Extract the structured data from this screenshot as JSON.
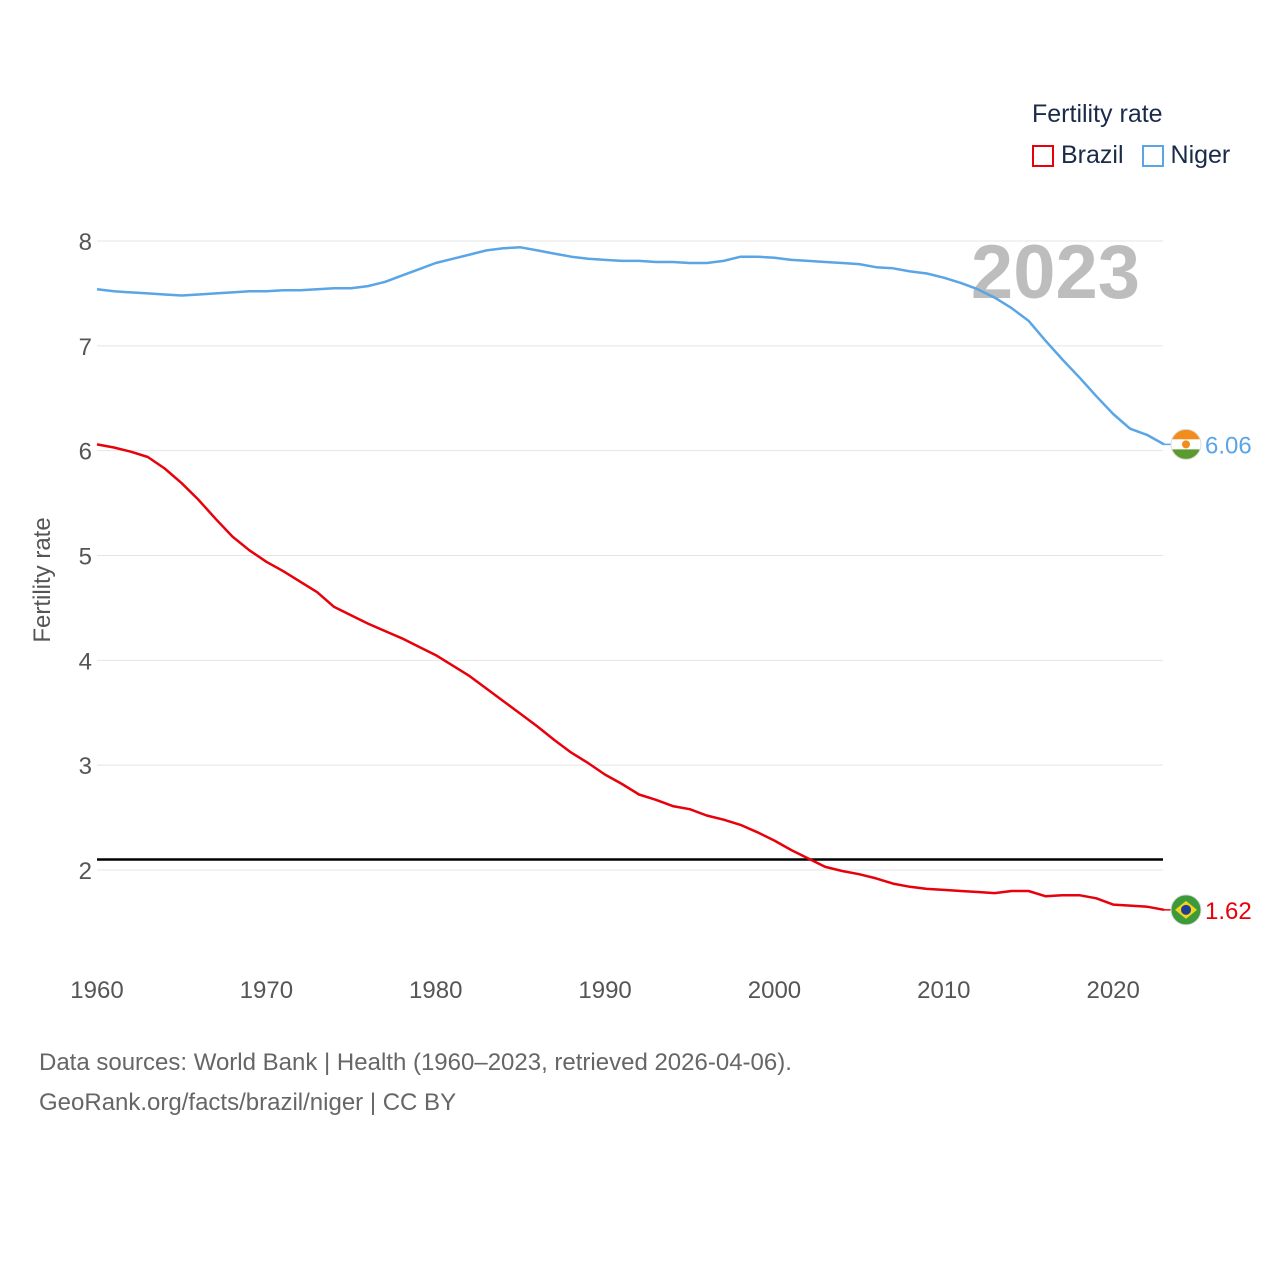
{
  "chart_data": {
    "type": "line",
    "title": "",
    "xlabel": "",
    "ylabel": "Fertility rate",
    "xlim": [
      1960,
      2023
    ],
    "ylim": [
      1.2,
      8.2
    ],
    "xticks": [
      1960,
      1970,
      1980,
      1990,
      2000,
      2010,
      2020
    ],
    "yticks": [
      2,
      3,
      4,
      5,
      6,
      7,
      8
    ],
    "year_label": "2023",
    "reference_line": 2.1,
    "legend_title": "Fertility rate",
    "x": [
      1960,
      1961,
      1962,
      1963,
      1964,
      1965,
      1966,
      1967,
      1968,
      1969,
      1970,
      1971,
      1972,
      1973,
      1974,
      1975,
      1976,
      1977,
      1978,
      1979,
      1980,
      1981,
      1982,
      1983,
      1984,
      1985,
      1986,
      1987,
      1988,
      1989,
      1990,
      1991,
      1992,
      1993,
      1994,
      1995,
      1996,
      1997,
      1998,
      1999,
      2000,
      2001,
      2002,
      2003,
      2004,
      2005,
      2006,
      2007,
      2008,
      2009,
      2010,
      2011,
      2012,
      2013,
      2014,
      2015,
      2016,
      2017,
      2018,
      2019,
      2020,
      2021,
      2022,
      2023
    ],
    "series": [
      {
        "name": "Brazil",
        "color": "#e8000b",
        "end_label": "1.62",
        "values": [
          6.06,
          6.03,
          5.99,
          5.94,
          5.83,
          5.69,
          5.53,
          5.35,
          5.18,
          5.05,
          4.94,
          4.85,
          4.75,
          4.65,
          4.51,
          4.43,
          4.35,
          4.28,
          4.21,
          4.13,
          4.05,
          3.95,
          3.85,
          3.73,
          3.61,
          3.49,
          3.37,
          3.24,
          3.12,
          3.02,
          2.91,
          2.82,
          2.72,
          2.67,
          2.61,
          2.58,
          2.52,
          2.48,
          2.43,
          2.36,
          2.28,
          2.19,
          2.11,
          2.03,
          1.99,
          1.96,
          1.92,
          1.87,
          1.84,
          1.82,
          1.81,
          1.8,
          1.79,
          1.78,
          1.8,
          1.8,
          1.75,
          1.76,
          1.76,
          1.73,
          1.67,
          1.66,
          1.65,
          1.62
        ]
      },
      {
        "name": "Niger",
        "color": "#5aa5e6",
        "end_label": "6.06",
        "values": [
          7.54,
          7.52,
          7.51,
          7.5,
          7.49,
          7.48,
          7.49,
          7.5,
          7.51,
          7.52,
          7.52,
          7.53,
          7.53,
          7.54,
          7.55,
          7.55,
          7.57,
          7.61,
          7.67,
          7.73,
          7.79,
          7.83,
          7.87,
          7.91,
          7.93,
          7.94,
          7.91,
          7.88,
          7.85,
          7.83,
          7.82,
          7.81,
          7.81,
          7.8,
          7.8,
          7.79,
          7.79,
          7.81,
          7.85,
          7.85,
          7.84,
          7.82,
          7.81,
          7.8,
          7.79,
          7.78,
          7.75,
          7.74,
          7.71,
          7.69,
          7.65,
          7.6,
          7.54,
          7.46,
          7.36,
          7.24,
          7.05,
          6.87,
          6.7,
          6.52,
          6.35,
          6.21,
          6.15,
          6.06
        ]
      }
    ]
  },
  "legend": {
    "title": "Fertility rate",
    "items": [
      {
        "label": "Brazil",
        "color": "#e8000b"
      },
      {
        "label": "Niger",
        "color": "#5aa5e6"
      }
    ]
  },
  "sources": {
    "line1": "Data sources: World Bank | Health (1960–2023, retrieved 2026-04-06).",
    "line2": "GeoRank.org/facts/brazil/niger | CC BY"
  },
  "icons": {
    "niger_flag": "niger-flag-icon",
    "brazil_flag": "brazil-flag-icon"
  }
}
